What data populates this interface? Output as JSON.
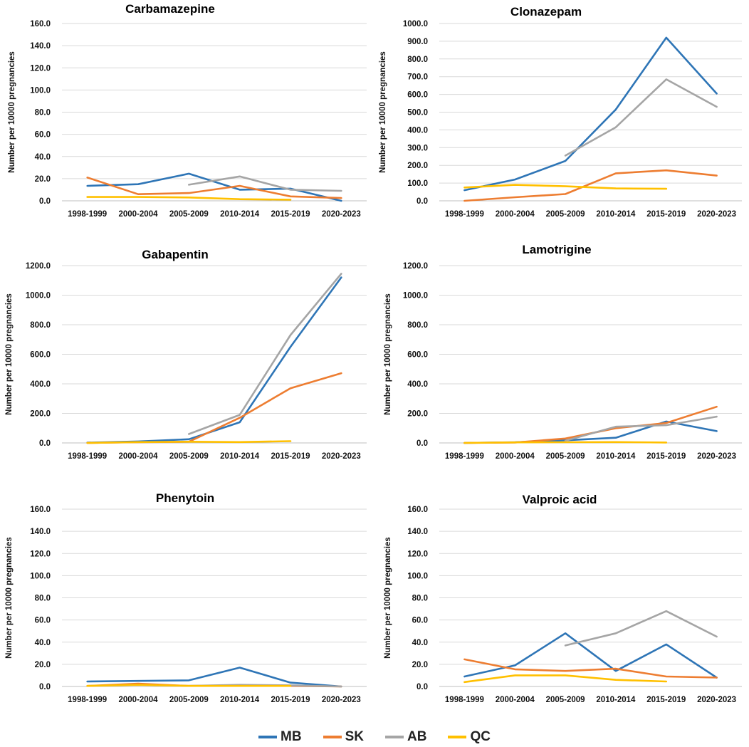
{
  "chart_data": [
    {
      "type": "line",
      "title": "Carbamazepine",
      "ylabel": "Number per 10000 pregnancies",
      "xlabel": "",
      "categories": [
        "1998-1999",
        "2000-2004",
        "2005-2009",
        "2010-2014",
        "2015-2019",
        "2020-2023"
      ],
      "ylim": [
        0,
        160
      ],
      "yticks": [
        "0.0",
        "20.0",
        "40.0",
        "60.0",
        "80.0",
        "100.0",
        "120.0",
        "140.0",
        "160.0"
      ],
      "series": [
        {
          "name": "MB",
          "values": [
            13.5,
            15.0,
            24.5,
            10.0,
            11.0,
            0.0
          ]
        },
        {
          "name": "SK",
          "values": [
            21.0,
            6.0,
            7.0,
            13.5,
            4.0,
            2.5
          ]
        },
        {
          "name": "AB",
          "values": [
            null,
            null,
            14.5,
            22.0,
            10.0,
            9.0
          ]
        },
        {
          "name": "QC",
          "values": [
            3.5,
            3.5,
            3.0,
            1.5,
            1.0,
            null
          ]
        }
      ]
    },
    {
      "type": "line",
      "title": "Clonazepam",
      "ylabel": "Number per 10000 pregnancies",
      "xlabel": "",
      "categories": [
        "1998-1999",
        "2000-2004",
        "2005-2009",
        "2010-2014",
        "2015-2019",
        "2020-2023"
      ],
      "ylim": [
        0,
        1000
      ],
      "yticks": [
        "0.0",
        "100.0",
        "200.0",
        "300.0",
        "400.0",
        "500.0",
        "600.0",
        "700.0",
        "800.0",
        "900.0",
        "1000.0"
      ],
      "series": [
        {
          "name": "MB",
          "values": [
            60,
            120,
            225,
            515,
            920,
            605
          ]
        },
        {
          "name": "SK",
          "values": [
            0,
            20,
            38,
            155,
            172,
            142
          ]
        },
        {
          "name": "AB",
          "values": [
            null,
            null,
            255,
            415,
            685,
            530
          ]
        },
        {
          "name": "QC",
          "values": [
            75,
            90,
            82,
            70,
            68,
            null
          ]
        }
      ]
    },
    {
      "type": "line",
      "title": "Gabapentin",
      "ylabel": "Number per 10000 pregnancies",
      "xlabel": "",
      "categories": [
        "1998-1999",
        "2000-2004",
        "2005-2009",
        "2010-2014",
        "2015-2019",
        "2020-2023"
      ],
      "ylim": [
        0,
        1200
      ],
      "yticks": [
        "0.0",
        "200.0",
        "400.0",
        "600.0",
        "800.0",
        "1000.0",
        "1200.0"
      ],
      "series": [
        {
          "name": "MB",
          "values": [
            2,
            10,
            25,
            140,
            650,
            1120
          ]
        },
        {
          "name": "SK",
          "values": [
            0,
            5,
            8,
            170,
            370,
            472
          ]
        },
        {
          "name": "AB",
          "values": [
            null,
            null,
            60,
            190,
            730,
            1145
          ]
        },
        {
          "name": "QC",
          "values": [
            0,
            6,
            8,
            6,
            12,
            null
          ]
        }
      ]
    },
    {
      "type": "line",
      "title": "Lamotrigine",
      "ylabel": "Number per 10000 pregnancies",
      "xlabel": "",
      "categories": [
        "1998-1999",
        "2000-2004",
        "2005-2009",
        "2010-2014",
        "2015-2019",
        "2020-2023"
      ],
      "ylim": [
        0,
        1200
      ],
      "yticks": [
        "0.0",
        "200.0",
        "400.0",
        "600.0",
        "800.0",
        "1000.0",
        "1200.0"
      ],
      "series": [
        {
          "name": "MB",
          "values": [
            0,
            5,
            18,
            35,
            145,
            80
          ]
        },
        {
          "name": "SK",
          "values": [
            0,
            3,
            30,
            100,
            135,
            245
          ]
        },
        {
          "name": "AB",
          "values": [
            null,
            null,
            15,
            110,
            120,
            178
          ]
        },
        {
          "name": "QC",
          "values": [
            0,
            4,
            5,
            6,
            3,
            null
          ]
        }
      ]
    },
    {
      "type": "line",
      "title": "Phenytoin",
      "ylabel": "Number per 10000 pregnancies",
      "xlabel": "",
      "categories": [
        "1998-1999",
        "2000-2004",
        "2005-2009",
        "2010-2014",
        "2015-2019",
        "2020-2023"
      ],
      "ylim": [
        0,
        160
      ],
      "yticks": [
        "0.0",
        "20.0",
        "40.0",
        "60.0",
        "80.0",
        "100.0",
        "120.0",
        "140.0",
        "160.0"
      ],
      "series": [
        {
          "name": "MB",
          "values": [
            4.5,
            5.0,
            5.5,
            17.0,
            3.5,
            0.0
          ]
        },
        {
          "name": "SK",
          "values": [
            0.5,
            2.5,
            0.5,
            1.0,
            0.5,
            0.0
          ]
        },
        {
          "name": "AB",
          "values": [
            null,
            null,
            0.5,
            1.5,
            1.0,
            0.0
          ]
        },
        {
          "name": "QC",
          "values": [
            0.5,
            1.5,
            0.5,
            0.5,
            0.5,
            null
          ]
        }
      ]
    },
    {
      "type": "line",
      "title": "Valproic acid",
      "ylabel": "Number per 10000 pregnancies",
      "xlabel": "",
      "categories": [
        "1998-1999",
        "2000-2004",
        "2005-2009",
        "2010-2014",
        "2015-2019",
        "2020-2023"
      ],
      "ylim": [
        0,
        160
      ],
      "yticks": [
        "0.0",
        "20.0",
        "40.0",
        "60.0",
        "80.0",
        "100.0",
        "120.0",
        "140.0",
        "160.0"
      ],
      "series": [
        {
          "name": "MB",
          "values": [
            9,
            19,
            48,
            14,
            38,
            8
          ]
        },
        {
          "name": "SK",
          "values": [
            24.5,
            15.5,
            14,
            16,
            9,
            8
          ]
        },
        {
          "name": "AB",
          "values": [
            null,
            null,
            37,
            48,
            68,
            45
          ]
        },
        {
          "name": "QC",
          "values": [
            4,
            10,
            10,
            6,
            4.5,
            null
          ]
        }
      ]
    }
  ],
  "legend": {
    "position": "bottom",
    "items": [
      {
        "name": "MB",
        "color": "#2e75b6"
      },
      {
        "name": "SK",
        "color": "#ed7d31"
      },
      {
        "name": "AB",
        "color": "#a5a5a5"
      },
      {
        "name": "QC",
        "color": "#ffc000"
      }
    ]
  }
}
